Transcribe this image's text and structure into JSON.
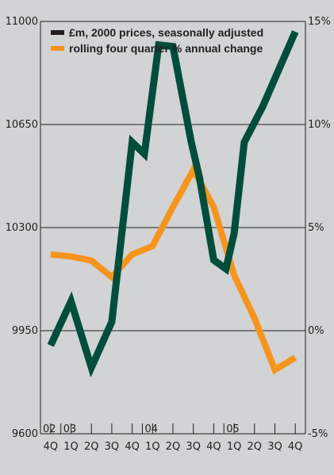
{
  "chart_data": {
    "type": "line",
    "categories": [
      "4Q",
      "1Q",
      "2Q",
      "3Q",
      "4Q",
      "1Q",
      "2Q",
      "3Q",
      "4Q",
      "1Q",
      "2Q",
      "3Q",
      "4Q"
    ],
    "year_labels": [
      "02",
      "03",
      "04",
      "05"
    ],
    "left_axis": {
      "ylim": [
        9600,
        11000
      ],
      "ticks": [
        "11000",
        "10650",
        "10300",
        "9950",
        "9600"
      ]
    },
    "right_axis": {
      "ylim": [
        -5,
        15
      ],
      "ticks": [
        "15%",
        "10%",
        "5%",
        "0%",
        "-5%"
      ]
    },
    "grid": true,
    "legend_position": "top-left",
    "series": [
      {
        "name": "£m, 2000 prices, seasonally adjusted",
        "axis": "left",
        "color": "#004d3b",
        "x": [
          0,
          1,
          2,
          3,
          4,
          4.6,
          5.3,
          6,
          6.9,
          7.3,
          8,
          8.6,
          9,
          9.5,
          10.4,
          12
        ],
        "values": [
          9900,
          10050,
          9825,
          9980,
          10590,
          10550,
          10920,
          10915,
          10590,
          10470,
          10190,
          10160,
          10280,
          10590,
          10710,
          10965
        ]
      },
      {
        "name": "rolling four quarter % annual change",
        "axis": "right",
        "color": "#f7941d",
        "x": [
          0,
          1,
          2,
          3,
          4,
          5,
          6,
          7,
          8,
          9,
          10,
          11,
          12
        ],
        "values": [
          3.7,
          3.6,
          3.4,
          2.6,
          3.7,
          4.1,
          6.0,
          7.8,
          6.0,
          2.7,
          0.6,
          -1.9,
          -1.3
        ]
      }
    ]
  }
}
